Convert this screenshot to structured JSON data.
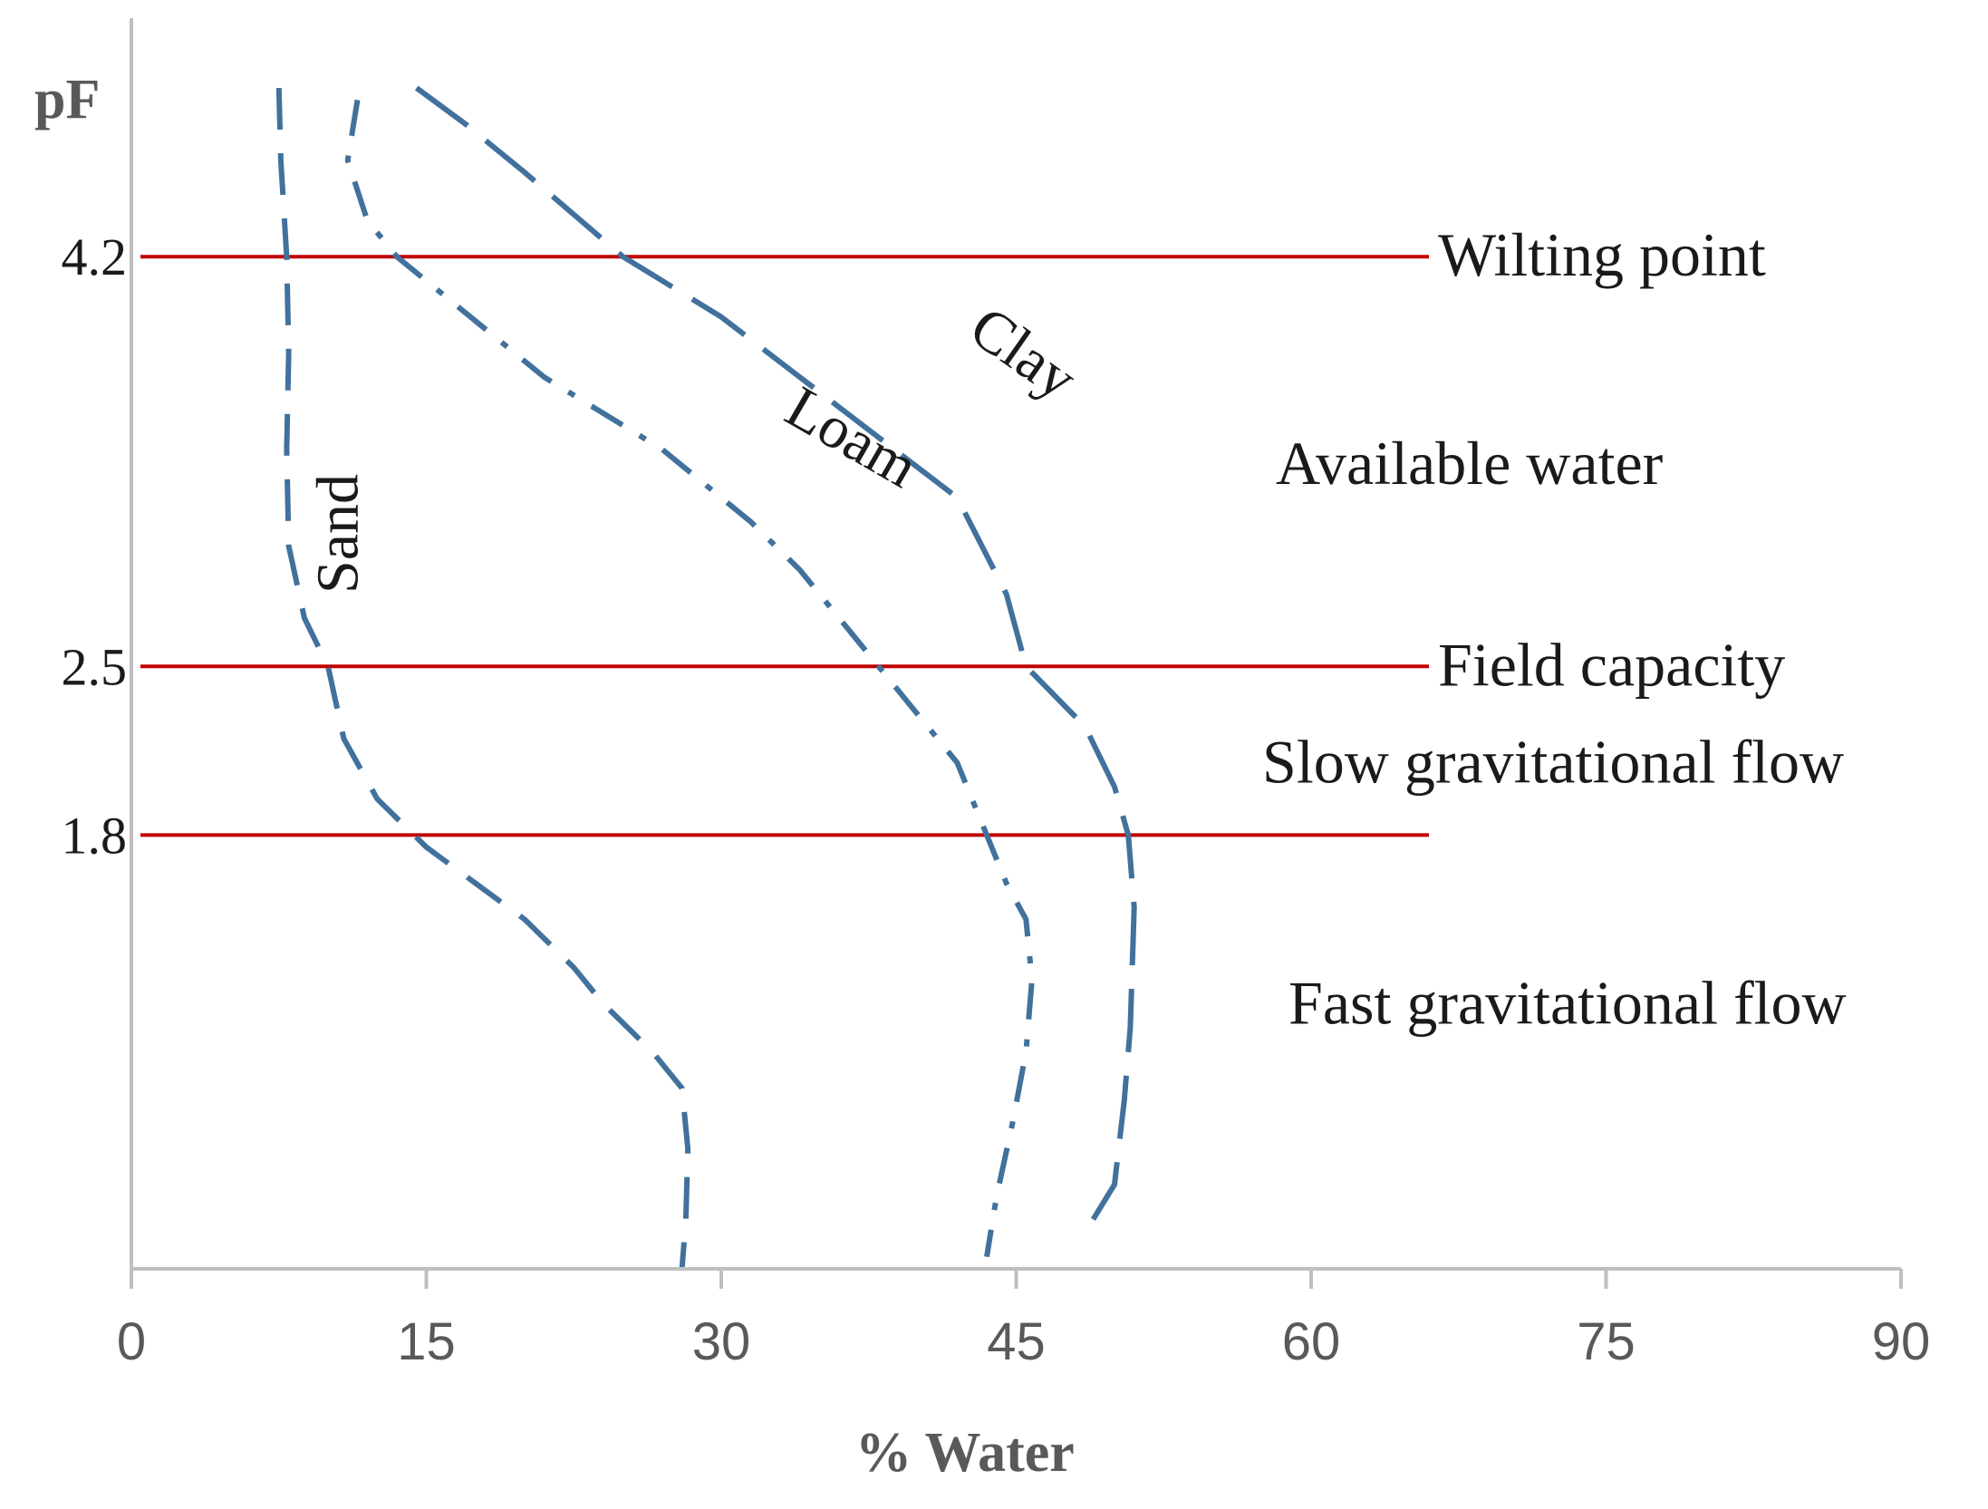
{
  "chart_data": {
    "type": "line",
    "title": "",
    "xlabel": "% Water",
    "ylabel": "pF",
    "xlim": [
      0,
      90
    ],
    "xticks": [
      "0",
      "15",
      "30",
      "45",
      "60",
      "75",
      "90"
    ],
    "ylim": [
      0,
      4.9
    ],
    "yticks": [
      "4.2",
      "2.5",
      "1.8"
    ],
    "grid": false,
    "colors": {
      "curves": "#41719C",
      "thresholds": "#C00000",
      "axis": "#BFBFBF"
    },
    "thresholds": [
      {
        "y": 4.2,
        "label": "Wilting point"
      },
      {
        "y": 2.5,
        "label": "Field capacity"
      },
      {
        "y": 1.8,
        "label": ""
      }
    ],
    "zones": [
      {
        "label": "Available water",
        "y": 3.34
      },
      {
        "label": "Slow gravitational flow",
        "y": 2.1
      },
      {
        "label": "Fast gravitational flow",
        "y": 1.1
      }
    ],
    "series": [
      {
        "name": "Sand",
        "dash": "dash",
        "points": [
          [
            7.5,
            4.9
          ],
          [
            7.6,
            4.6
          ],
          [
            7.9,
            4.2
          ],
          [
            8.0,
            3.8
          ],
          [
            7.9,
            3.4
          ],
          [
            8.0,
            3.0
          ],
          [
            8.8,
            2.7
          ],
          [
            10.0,
            2.5
          ],
          [
            10.8,
            2.2
          ],
          [
            12.5,
            1.95
          ],
          [
            15.0,
            1.75
          ],
          [
            17.5,
            1.6
          ],
          [
            20.0,
            1.45
          ],
          [
            22.5,
            1.25
          ],
          [
            24.0,
            1.1
          ],
          [
            26.5,
            0.9
          ],
          [
            28.0,
            0.75
          ],
          [
            28.3,
            0.5
          ],
          [
            28.2,
            0.2
          ],
          [
            28.0,
            0.0
          ]
        ],
        "label": {
          "x": 10.8,
          "y": 3.05,
          "rotate": -90
        }
      },
      {
        "name": "Loam",
        "dash": "dashdot",
        "points": [
          [
            11.5,
            4.85
          ],
          [
            11.0,
            4.6
          ],
          [
            12.0,
            4.35
          ],
          [
            13.5,
            4.2
          ],
          [
            16.5,
            4.0
          ],
          [
            21.0,
            3.7
          ],
          [
            27.0,
            3.4
          ],
          [
            31.5,
            3.1
          ],
          [
            34.0,
            2.9
          ],
          [
            37.0,
            2.6
          ],
          [
            39.5,
            2.35
          ],
          [
            42.0,
            2.1
          ],
          [
            43.0,
            1.9
          ],
          [
            43.5,
            1.8
          ],
          [
            44.5,
            1.6
          ],
          [
            45.5,
            1.45
          ],
          [
            45.8,
            1.2
          ],
          [
            45.5,
            0.9
          ],
          [
            44.8,
            0.6
          ],
          [
            44.0,
            0.3
          ],
          [
            43.5,
            0.05
          ]
        ],
        "label": {
          "x": 36.5,
          "y": 3.43,
          "rotate": 30
        }
      },
      {
        "name": "Clay",
        "dash": "longdash",
        "points": [
          [
            14.5,
            4.9
          ],
          [
            17.0,
            4.75
          ],
          [
            20.0,
            4.55
          ],
          [
            25.0,
            4.2
          ],
          [
            30.0,
            3.95
          ],
          [
            34.0,
            3.7
          ],
          [
            38.0,
            3.45
          ],
          [
            42.0,
            3.2
          ],
          [
            44.5,
            2.8
          ],
          [
            45.5,
            2.5
          ],
          [
            48.5,
            2.25
          ],
          [
            50.0,
            2.0
          ],
          [
            50.7,
            1.8
          ],
          [
            51.0,
            1.5
          ],
          [
            50.8,
            1.0
          ],
          [
            50.5,
            0.7
          ],
          [
            50.0,
            0.35
          ],
          [
            48.5,
            0.15
          ]
        ],
        "label": {
          "x": 45.2,
          "y": 3.78,
          "rotate": 35
        }
      }
    ]
  }
}
